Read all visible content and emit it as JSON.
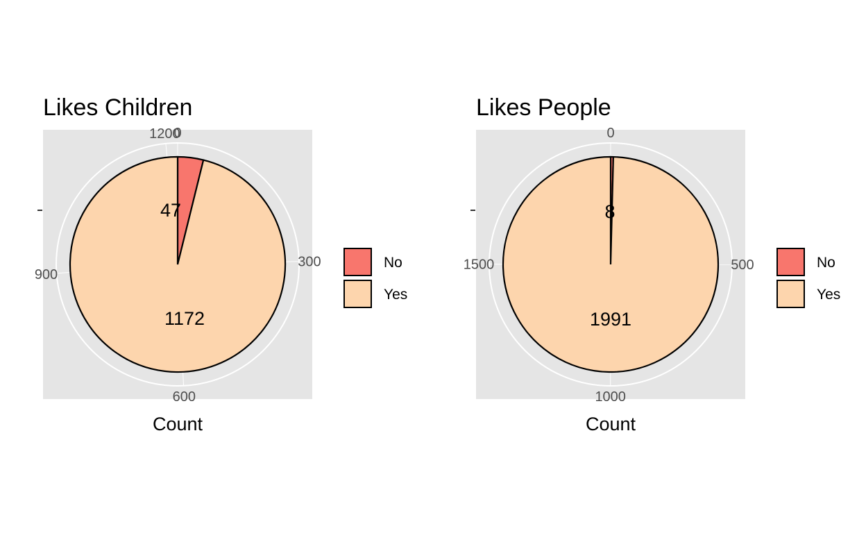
{
  "chart_data": [
    {
      "type": "pie",
      "title": "Likes Children",
      "xlabel": "Count",
      "categories": [
        "No",
        "Yes"
      ],
      "values": [
        47,
        1172
      ],
      "data_labels": [
        "47",
        "1172"
      ],
      "theta_ticks": [
        0,
        300,
        600,
        900,
        1200
      ],
      "theta_tick_labels": [
        "0",
        "300",
        "600",
        "900",
        "1200"
      ],
      "theta_range": [
        0,
        1219
      ],
      "legend_position": "right",
      "grid": true
    },
    {
      "type": "pie",
      "title": "Likes People",
      "xlabel": "Count",
      "categories": [
        "No",
        "Yes"
      ],
      "values": [
        8,
        1991
      ],
      "data_labels": [
        "8",
        "1991"
      ],
      "theta_ticks": [
        0,
        500,
        1000,
        1500
      ],
      "theta_tick_labels": [
        "0",
        "500",
        "1000",
        "1500"
      ],
      "theta_range": [
        0,
        1999
      ],
      "legend_position": "right",
      "grid": true
    }
  ],
  "legend": {
    "items": [
      {
        "label": "No",
        "color": "#F8766D"
      },
      {
        "label": "Yes",
        "color": "#FDD5AD"
      }
    ]
  },
  "colors": {
    "panel_background": "#E5E5E5",
    "grid": "#FFFFFF",
    "outline": "#000000"
  }
}
